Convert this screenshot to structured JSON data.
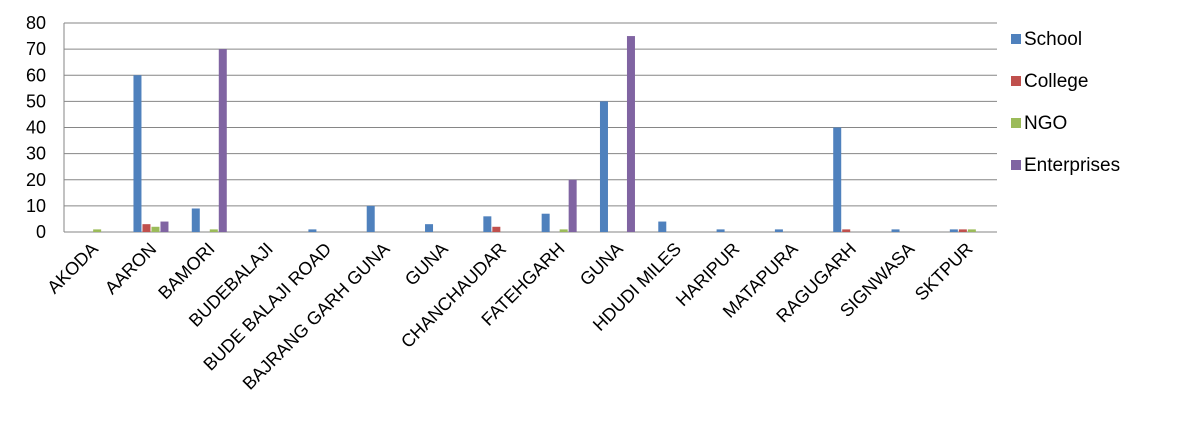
{
  "chart_data": {
    "type": "bar",
    "title": "",
    "xlabel": "",
    "ylabel": "",
    "ylim": [
      0,
      80
    ],
    "yticks": [
      0,
      10,
      20,
      30,
      40,
      50,
      60,
      70,
      80
    ],
    "grid": true,
    "legend_position": "right",
    "categories": [
      "AKODA",
      "AARON",
      "BAMORI",
      "BUDEBALAJI",
      "BUDE BALAJI ROAD",
      "BAJRANG GARH GUNA",
      "GUNA",
      "CHANCHAUDAR",
      "FATEHGARH",
      "GUNA",
      "HDUDI MILES",
      "HARIPUR",
      "MATAPURA",
      "RAGUGARH",
      "SIGNWASA",
      "SKTPUR"
    ],
    "series": [
      {
        "name": "School",
        "color": "#4F81BD",
        "values": [
          0,
          60,
          9,
          0,
          1,
          10,
          3,
          6,
          7,
          50,
          4,
          1,
          1,
          40,
          1,
          1
        ]
      },
      {
        "name": "College",
        "color": "#C0504D",
        "values": [
          0,
          3,
          0,
          0,
          0,
          0,
          0,
          2,
          0,
          0,
          0,
          0,
          0,
          1,
          0,
          1
        ]
      },
      {
        "name": "NGO",
        "color": "#9BBB59",
        "values": [
          1,
          2,
          1,
          0,
          0,
          0,
          0,
          0,
          1,
          0,
          0,
          0,
          0,
          0,
          0,
          1
        ]
      },
      {
        "name": "Enterprises",
        "color": "#8064A2",
        "values": [
          0,
          4,
          70,
          0,
          0,
          0,
          0,
          0,
          20,
          75,
          0,
          0,
          0,
          0,
          0,
          0
        ]
      }
    ]
  }
}
